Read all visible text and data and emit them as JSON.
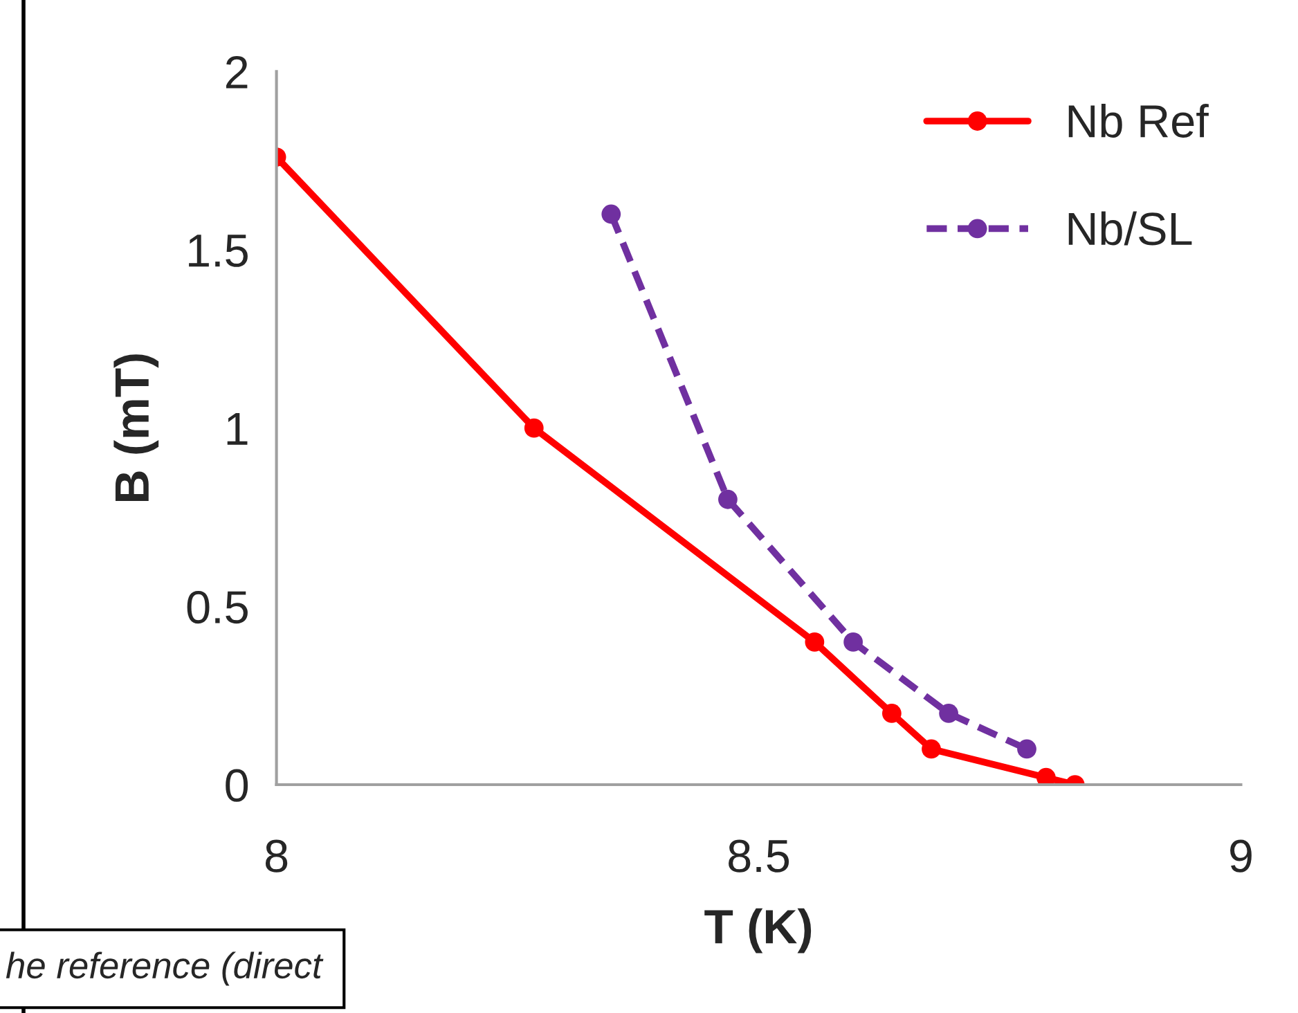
{
  "chart_data": {
    "type": "line",
    "xlabel": "T (K)",
    "ylabel": "B (mT)",
    "xlim": [
      8,
      9
    ],
    "xticks": [
      8,
      8.5,
      9
    ],
    "ylim": [
      0,
      2
    ],
    "yticks": [
      0,
      0.5,
      1,
      1.5,
      2
    ],
    "grid": false,
    "legend": "top right",
    "marker": "circle",
    "series": [
      {
        "name": "Nb Ref",
        "color": "#ff0000",
        "line_style": "solid",
        "x": [
          8.0,
          8.267,
          8.558,
          8.638,
          8.679,
          8.798,
          8.828
        ],
        "values": [
          1.76,
          1.0,
          0.4,
          0.2,
          0.1,
          0.02,
          0.0
        ]
      },
      {
        "name": "Nb/SL",
        "color": "#7030a0",
        "line_style": "dashed",
        "x": [
          8.347,
          8.468,
          8.598,
          8.697,
          8.778
        ],
        "values": [
          1.6,
          0.8,
          0.4,
          0.2,
          0.1
        ]
      }
    ],
    "annotations": [
      "he reference (direct"
    ]
  }
}
